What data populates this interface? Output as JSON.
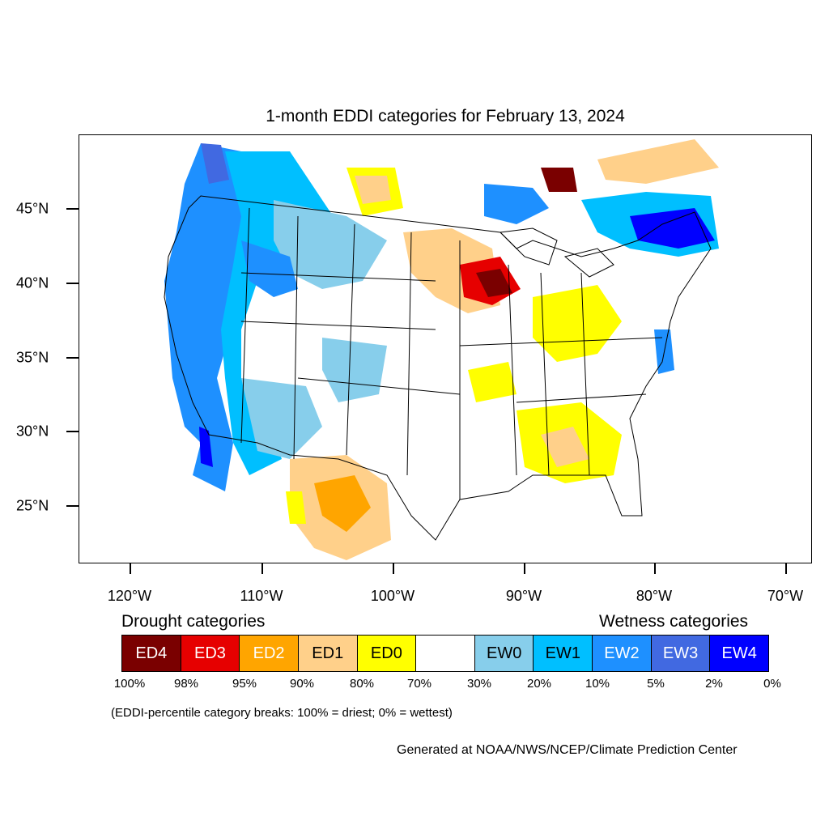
{
  "title": "1-month EDDI categories for February 13, 2024",
  "map": {
    "y_axis_labels": [
      "45°N",
      "40°N",
      "35°N",
      "30°N",
      "25°N"
    ],
    "x_axis_labels": [
      "120°W",
      "110°W",
      "100°W",
      "90°W",
      "80°W",
      "70°W"
    ],
    "base_color": "#ffffff",
    "state_line_color": "#000000"
  },
  "legend": {
    "drought_heading": "Drought categories",
    "wetness_heading": "Wetness categories",
    "categories": [
      {
        "label": "ED4",
        "color": "#7a0000",
        "text_color": "#ffffff"
      },
      {
        "label": "ED3",
        "color": "#e60000",
        "text_color": "#ffffff"
      },
      {
        "label": "ED2",
        "color": "#ffa500",
        "text_color": "#ffffff"
      },
      {
        "label": "ED1",
        "color": "#ffd08a",
        "text_color": "#000000"
      },
      {
        "label": "ED0",
        "color": "#ffff00",
        "text_color": "#000000"
      },
      {
        "label": "",
        "color": "#ffffff",
        "text_color": "#000000"
      },
      {
        "label": "EW0",
        "color": "#87ceeb",
        "text_color": "#000000"
      },
      {
        "label": "EW1",
        "color": "#00bfff",
        "text_color": "#000000"
      },
      {
        "label": "EW2",
        "color": "#1e90ff",
        "text_color": "#ffffff"
      },
      {
        "label": "EW3",
        "color": "#4169e1",
        "text_color": "#ffffff"
      },
      {
        "label": "EW4",
        "color": "#0000ff",
        "text_color": "#ffffff"
      }
    ],
    "breaks": [
      "100%",
      "98%",
      "95%",
      "90%",
      "80%",
      "70%",
      "30%",
      "20%",
      "10%",
      "5%",
      "2%",
      "0%"
    ],
    "note": "(EDDI-percentile category breaks: 100% = driest; 0% = wettest)"
  },
  "credit": "Generated at NOAA/NWS/NCEP/Climate Prediction Center"
}
